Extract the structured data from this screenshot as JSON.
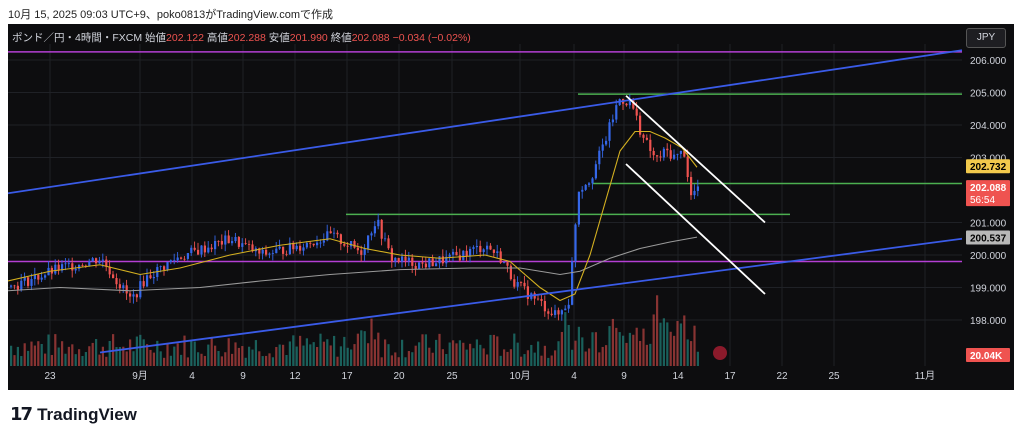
{
  "header_text": "10月 15, 2025 09:03 UTC+9、poko0813がTradingView.comで作成",
  "legend": {
    "symbol": "ポンド／円・4時間・FXCM",
    "open_label": "始値",
    "open": "202.122",
    "high_label": "高値",
    "high": "202.288",
    "low_label": "安値",
    "low": "201.990",
    "close_label": "終値",
    "close": "202.088",
    "change": "−0.034 (−0.02%)"
  },
  "currency_button": "JPY",
  "footer": {
    "brand": "TradingView",
    "logo_mark": "17"
  },
  "colors": {
    "bull": "#3567e8",
    "bear": "#ef5350",
    "vol_bull": "#26a69a",
    "vol_bear": "#ef5350",
    "trend_blue": "#3a5be8",
    "purple": "#b43fd3",
    "green": "#4caf50",
    "ma_fast": "#d4b020",
    "ma_slow": "#9a9a9a"
  },
  "chart_data": {
    "type": "candlestick",
    "y_ticks": [
      "206.000",
      "205.000",
      "204.000",
      "203.000",
      "201.000",
      "200.000",
      "199.000",
      "198.000"
    ],
    "ylim": [
      197.0,
      206.5
    ],
    "x_ticks": [
      "23",
      "9月",
      "4",
      "9",
      "12",
      "17",
      "20",
      "25",
      "10月",
      "4",
      "9",
      "14",
      "17",
      "22",
      "25",
      "11月"
    ],
    "price_labels": [
      {
        "value": 202.732,
        "text": "202.732",
        "style": "yellow"
      },
      {
        "value": 202.088,
        "text": "202.088",
        "sub": "56:54",
        "style": "red"
      },
      {
        "value": 200.537,
        "text": "200.537",
        "style": "gray"
      }
    ],
    "volume_label": "20.04K",
    "horizontal_lines": [
      {
        "value": 206.25,
        "color": "purple"
      },
      {
        "value": 199.8,
        "color": "purple"
      },
      {
        "value": 204.95,
        "color": "green"
      },
      {
        "value": 202.2,
        "color": "green"
      },
      {
        "value": 201.25,
        "color": "green"
      }
    ],
    "trendlines": [
      {
        "from": [
          "23",
          201.9
        ],
        "to": [
          "11月+",
          206.3
        ],
        "color": "blue"
      },
      {
        "from": [
          "23",
          197.3
        ],
        "to": [
          "11月+",
          200.5
        ],
        "color": "blue"
      },
      {
        "from": [
          "9",
          204.9
        ],
        "to": [
          "22",
          201.0
        ],
        "color": "white"
      },
      {
        "from": [
          "9",
          202.8
        ],
        "to": [
          "22",
          198.8
        ],
        "color": "white"
      }
    ],
    "grid": true
  }
}
